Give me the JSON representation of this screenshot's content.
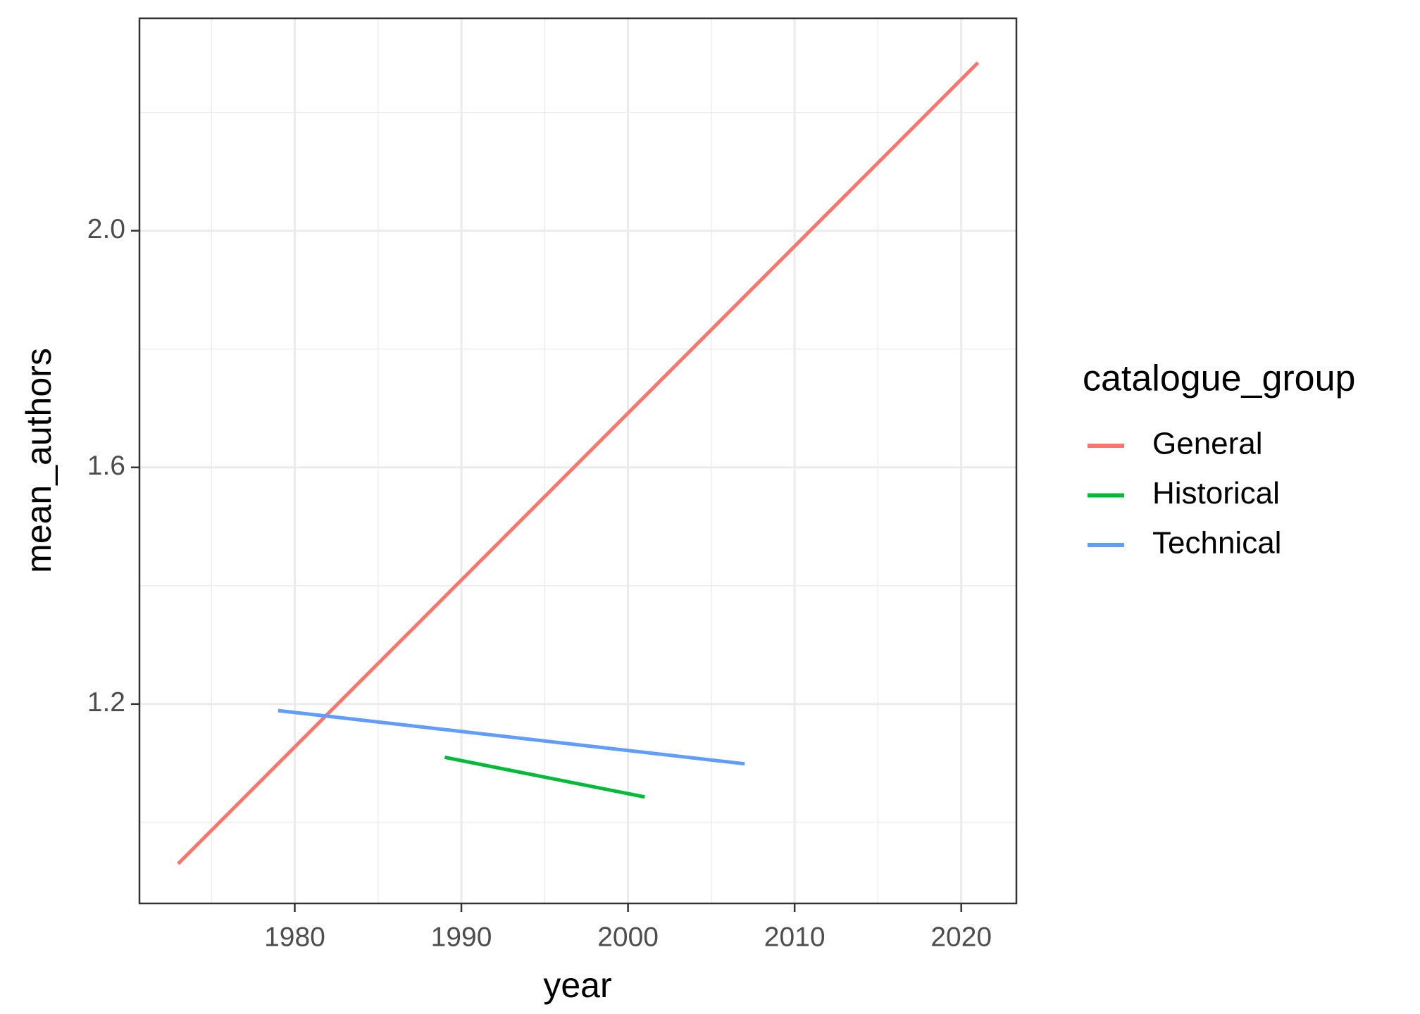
{
  "chart_data": {
    "type": "line",
    "x_label": "year",
    "y_label": "mean_authors",
    "legend_title": "catalogue_group",
    "series": [
      {
        "name": "General",
        "color": "#f8766d",
        "x": [
          1973,
          2021
        ],
        "values": [
          0.93,
          2.284
        ]
      },
      {
        "name": "Historical",
        "color": "#00ba38",
        "x": [
          1989,
          2001
        ],
        "values": [
          1.11,
          1.043
        ]
      },
      {
        "name": "Technical",
        "color": "#619cff",
        "x": [
          1979,
          2007
        ],
        "values": [
          1.189,
          1.099
        ]
      }
    ],
    "xlim": [
      1970.68,
      2023.31
    ],
    "ylim": [
      0.863,
      2.359
    ],
    "xticks": [
      1980,
      1990,
      2000,
      2010,
      2020
    ],
    "yticks": [
      1.2,
      1.6,
      {
        "value": 2,
        "label": "2.0"
      }
    ],
    "minor_xticks": [
      1975,
      1985,
      1995,
      2005,
      2015
    ],
    "minor_yticks": [
      1.0,
      1.4,
      1.8,
      2.2
    ],
    "grid": true,
    "legend_position": "right"
  }
}
